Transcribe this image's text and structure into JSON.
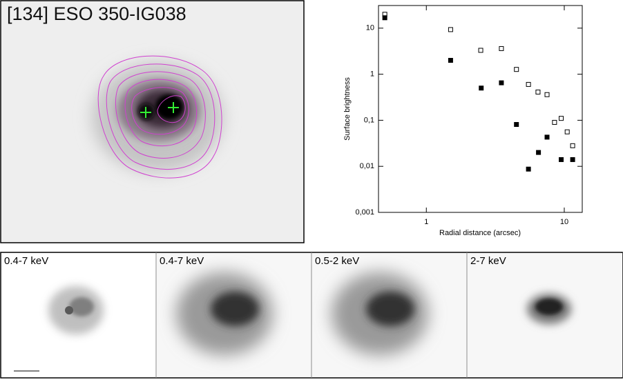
{
  "image": {
    "title": "[134] ESO 350-IG038"
  },
  "chart_data": {
    "type": "scatter",
    "xlabel": "Radial distance (arcsec)",
    "ylabel": "Surface brightness",
    "xlog": true,
    "ylog": true,
    "xlim": [
      0.45,
      13.5
    ],
    "ylim": [
      0.001,
      31
    ],
    "xticks": [
      1,
      10
    ],
    "yticks": [
      {
        "value": 0.001,
        "label": "0,001"
      },
      {
        "value": 0.01,
        "label": "0,01"
      },
      {
        "value": 0.1,
        "label": "0,1"
      },
      1,
      10
    ],
    "series": [
      {
        "color": "#000000",
        "filled": false,
        "x": [
          0.5,
          1.5,
          2.48,
          3.5,
          4.5,
          5.5,
          6.45,
          7.5,
          8.5,
          9.5,
          10.5,
          11.5
        ],
        "values": [
          20,
          9.3,
          3.3,
          3.6,
          1.27,
          0.6,
          0.41,
          0.36,
          0.09,
          0.11,
          0.056,
          0.028
        ]
      },
      {
        "color": "#000000",
        "filled": true,
        "x": [
          0.5,
          1.5,
          2.5,
          3.5,
          4.5,
          5.5,
          6.5,
          7.5,
          9.5,
          11.5
        ],
        "values": [
          16.8,
          2.0,
          0.5,
          0.65,
          0.081,
          0.0087,
          0.02,
          0.043,
          0.014,
          0.014
        ]
      }
    ]
  },
  "panels": [
    {
      "label": "0.4-7 keV"
    },
    {
      "label": "0.4-7 keV"
    },
    {
      "label": "0.5-2 keV"
    },
    {
      "label": "2-7 keV"
    }
  ]
}
